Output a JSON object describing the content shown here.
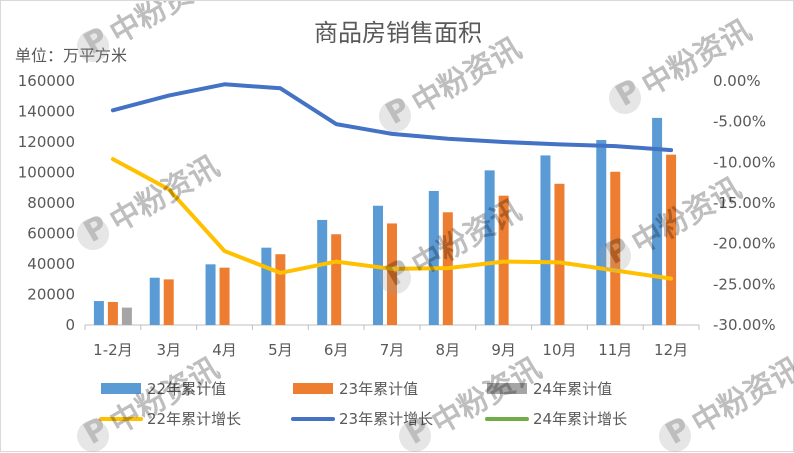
{
  "chart_data": {
    "type": "bar+line",
    "title": "商品房销售面积",
    "unit_label": "单位：万平方米",
    "categories": [
      "1-2月",
      "3月",
      "4月",
      "5月",
      "6月",
      "7月",
      "8月",
      "9月",
      "10月",
      "11月",
      "12月"
    ],
    "y_left": {
      "range": [
        0,
        160000
      ],
      "ticks": [
        0,
        20000,
        40000,
        60000,
        80000,
        100000,
        120000,
        140000,
        160000
      ],
      "tick_labels": [
        "0",
        "20000",
        "40000",
        "60000",
        "80000",
        "100000",
        "120000",
        "140000",
        "160000"
      ]
    },
    "y_right": {
      "range": [
        -30,
        0
      ],
      "ticks": [
        -30,
        -25,
        -20,
        -15,
        -10,
        -5,
        0
      ],
      "tick_labels": [
        "-30.00%",
        "-25.00%",
        "-20.00%",
        "-15.00%",
        "-10.00%",
        "-5.00%",
        "0.00%"
      ]
    },
    "bar_series": [
      {
        "name": "22年累计值",
        "color": "#5b9bd5",
        "values": [
          15700,
          31000,
          39800,
          50700,
          68900,
          78200,
          87900,
          101400,
          111200,
          121300,
          135800
        ]
      },
      {
        "name": "23年累计值",
        "color": "#ed7d31",
        "values": [
          15100,
          29900,
          37600,
          46400,
          59500,
          66600,
          73900,
          84800,
          92600,
          100500,
          111700
        ]
      },
      {
        "name": "24年累计值",
        "color": "#a5a5a5",
        "values": [
          11400,
          null,
          null,
          null,
          null,
          null,
          null,
          null,
          null,
          null,
          null
        ]
      }
    ],
    "line_series": [
      {
        "name": "22年累计增长",
        "color": "#ffc000",
        "values": [
          -9.6,
          -13.3,
          -20.9,
          -23.6,
          -22.2,
          -23.1,
          -23.0,
          -22.2,
          -22.3,
          -23.3,
          -24.3
        ]
      },
      {
        "name": "23年累计增长",
        "color": "#4472c4",
        "values": [
          -3.6,
          -1.8,
          -0.4,
          -0.9,
          -5.3,
          -6.5,
          -7.1,
          -7.5,
          -7.8,
          -8.0,
          -8.5
        ]
      },
      {
        "name": "24年累计增长",
        "color": "#70ad47",
        "values": [
          null,
          null,
          null,
          null,
          null,
          null,
          null,
          null,
          null,
          null,
          null
        ]
      }
    ],
    "legend": [
      {
        "label": "22年累计值",
        "kind": "bar",
        "color": "#5b9bd5"
      },
      {
        "label": "23年累计值",
        "kind": "bar",
        "color": "#ed7d31"
      },
      {
        "label": "24年累计值",
        "kind": "bar",
        "color": "#a5a5a5"
      },
      {
        "label": "22年累计增长",
        "kind": "line",
        "color": "#ffc000"
      },
      {
        "label": "23年累计增长",
        "kind": "line",
        "color": "#4472c4"
      },
      {
        "label": "24年累计增长",
        "kind": "line",
        "color": "#70ad47"
      }
    ],
    "legend_position": "bottom",
    "grid": false
  },
  "watermark": {
    "text": "中粉资讯",
    "color": "#9e9e9e"
  }
}
